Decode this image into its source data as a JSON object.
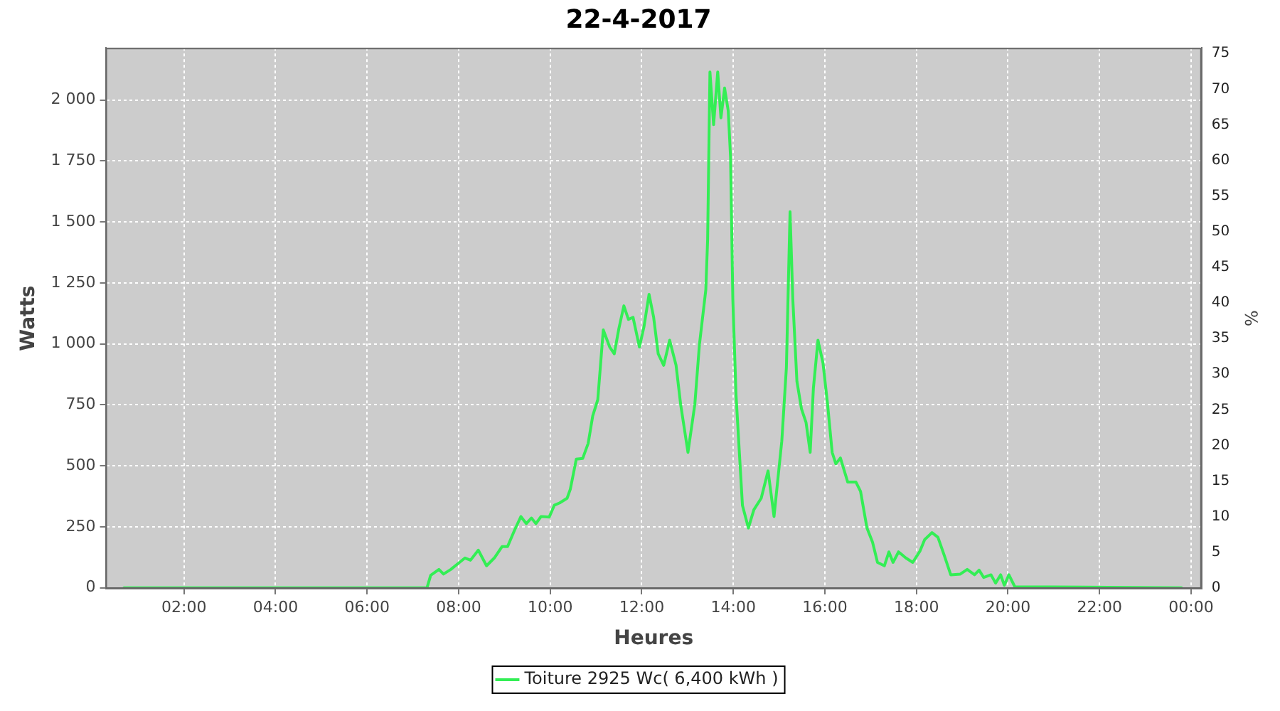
{
  "chart_data": {
    "type": "line",
    "title": "22-4-2017",
    "xlabel": "Heures",
    "ylabel": "Watts",
    "y2label": "%",
    "xlim": [
      0.29,
      24.23
    ],
    "ylim": [
      -4,
      2214
    ],
    "y2lim": [
      -0.1,
      75.8
    ],
    "xticks": [
      {
        "value": 2,
        "label": "02:00"
      },
      {
        "value": 4,
        "label": "04:00"
      },
      {
        "value": 6,
        "label": "06:00"
      },
      {
        "value": 8,
        "label": "08:00"
      },
      {
        "value": 10,
        "label": "10:00"
      },
      {
        "value": 12,
        "label": "12:00"
      },
      {
        "value": 14,
        "label": "14:00"
      },
      {
        "value": 16,
        "label": "16:00"
      },
      {
        "value": 18,
        "label": "18:00"
      },
      {
        "value": 20,
        "label": "20:00"
      },
      {
        "value": 22,
        "label": "22:00"
      },
      {
        "value": 24,
        "label": "00:00"
      }
    ],
    "yticks": [
      0,
      250,
      500,
      750,
      {
        "value": 1000,
        "label": "1 000"
      },
      {
        "value": 1250,
        "label": "1 250"
      },
      {
        "value": 1500,
        "label": "1 500"
      },
      {
        "value": 1750,
        "label": "1 750"
      },
      {
        "value": 2000,
        "label": "2 000"
      }
    ],
    "y2ticks": [
      0,
      5,
      10,
      15,
      20,
      25,
      30,
      35,
      40,
      45,
      50,
      55,
      60,
      65,
      70,
      75
    ],
    "grid": true,
    "legend": "bottom",
    "marker": "none",
    "line_style": "solid",
    "series": [
      {
        "name": "Toiture 2925 Wc( 6,400 kWh )",
        "color": "#33ee55",
        "x": [
          0.69,
          7.21,
          7.31,
          7.39,
          7.57,
          7.67,
          7.83,
          7.98,
          8.14,
          8.26,
          8.43,
          8.61,
          8.78,
          8.95,
          9.07,
          9.22,
          9.36,
          9.48,
          9.59,
          9.69,
          9.8,
          9.98,
          10.09,
          10.21,
          10.37,
          10.44,
          10.57,
          10.71,
          10.83,
          10.93,
          11.04,
          11.16,
          11.3,
          11.4,
          11.5,
          11.61,
          11.71,
          11.81,
          11.95,
          12.05,
          12.16,
          12.26,
          12.36,
          12.48,
          12.61,
          12.75,
          12.85,
          13.01,
          13.16,
          13.26,
          13.4,
          13.44,
          13.49,
          13.57,
          13.66,
          13.73,
          13.81,
          13.89,
          13.94,
          13.99,
          14.06,
          14.2,
          14.33,
          14.45,
          14.61,
          14.76,
          14.89,
          15.06,
          15.16,
          15.24,
          15.3,
          15.39,
          15.49,
          15.59,
          15.68,
          15.75,
          15.85,
          15.96,
          16.06,
          16.16,
          16.24,
          16.34,
          16.5,
          16.68,
          16.78,
          16.92,
          17.04,
          17.15,
          17.3,
          17.4,
          17.49,
          17.61,
          17.77,
          17.92,
          18.08,
          18.18,
          18.34,
          18.47,
          18.61,
          18.75,
          18.96,
          19.11,
          19.27,
          19.37,
          19.47,
          19.63,
          19.73,
          19.84,
          19.92,
          20.02,
          20.15,
          23.79
        ],
        "values": [
          0,
          0,
          0,
          51,
          75,
          56,
          75,
          98,
          122,
          113,
          154,
          90,
          122,
          169,
          169,
          235,
          292,
          263,
          286,
          263,
          292,
          290,
          338,
          348,
          367,
          404,
          527,
          530,
          592,
          705,
          771,
          1057,
          987,
          959,
          1062,
          1156,
          1100,
          1109,
          987,
          1071,
          1203,
          1109,
          959,
          912,
          1015,
          912,
          752,
          555,
          752,
          996,
          1222,
          1429,
          2115,
          1899,
          2115,
          1927,
          2049,
          1955,
          1767,
          1184,
          790,
          338,
          245,
          320,
          367,
          479,
          292,
          602,
          902,
          1542,
          1184,
          846,
          733,
          677,
          555,
          818,
          1015,
          921,
          752,
          555,
          508,
          532,
          433,
          433,
          395,
          245,
          188,
          104,
          90,
          147,
          104,
          147,
          122,
          104,
          151,
          197,
          226,
          207,
          132,
          53,
          56,
          75,
          53,
          72,
          42,
          53,
          19,
          53,
          10,
          53,
          4,
          0
        ]
      }
    ]
  }
}
